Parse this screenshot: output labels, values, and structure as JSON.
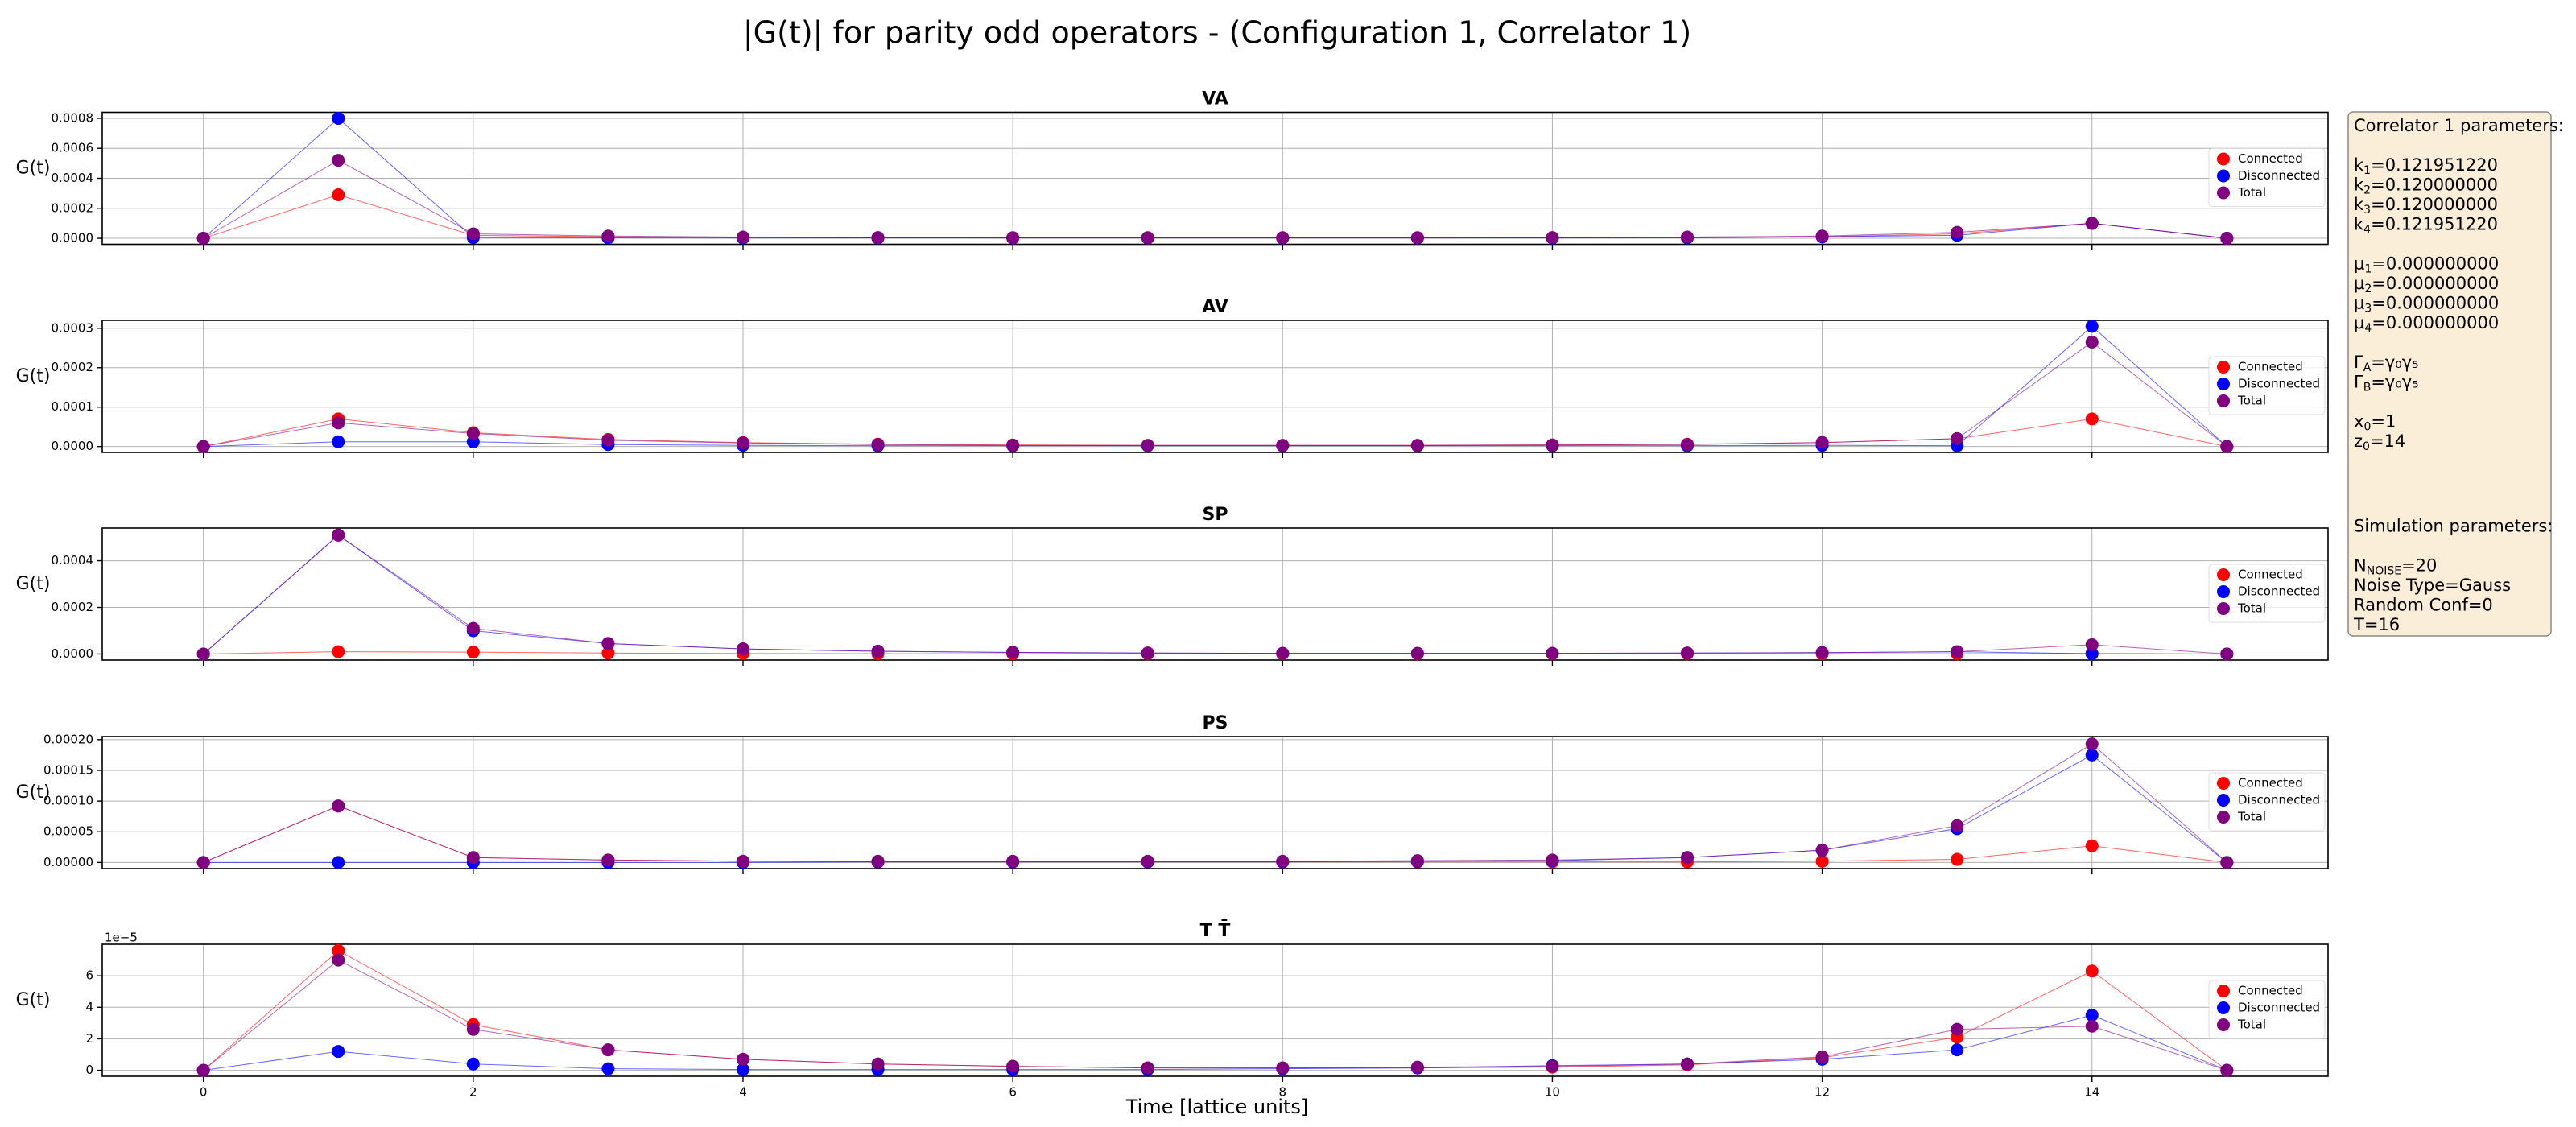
{
  "title": "|G(t)| for parity odd operators - (Configuration 1, Correlator 1)",
  "xlabel": "Time [lattice units]",
  "chart_data": [
    {
      "type": "line",
      "title": "VA",
      "ylabel": "G(t)",
      "grid": true,
      "legend": "right",
      "x": [
        0,
        1,
        2,
        3,
        4,
        5,
        6,
        7,
        8,
        9,
        10,
        11,
        12,
        13,
        14,
        15
      ],
      "xlim": [
        -0.75,
        15.75
      ],
      "xticks": [
        0,
        2,
        4,
        6,
        8,
        10,
        12,
        14
      ],
      "ylim": [
        -4e-05,
        0.00084
      ],
      "yticks": [
        {
          "value": 0,
          "label": "0.0000"
        },
        {
          "value": 0.0002,
          "label": "0.0002"
        },
        {
          "value": 0.0004,
          "label": "0.0004"
        },
        {
          "value": 0.0006,
          "label": "0.0006"
        },
        {
          "value": 0.0008,
          "label": "0.0008"
        }
      ],
      "series": [
        {
          "name": "Connected",
          "color": "red",
          "values": [
            0,
            0.00029,
            2e-05,
            1e-05,
            5e-06,
            3e-06,
            2e-06,
            2e-06,
            2e-06,
            2e-06,
            3e-06,
            5e-06,
            1e-05,
            3e-05,
            0.0001,
            0
          ]
        },
        {
          "name": "Disconnected",
          "color": "blue",
          "values": [
            0,
            0.0008,
            5e-06,
            3e-06,
            2e-06,
            2e-06,
            2e-06,
            2e-06,
            2e-06,
            2e-06,
            2e-06,
            3e-06,
            1e-05,
            2e-05,
            0.0001,
            0
          ]
        },
        {
          "name": "Total",
          "color": "purple",
          "values": [
            0,
            0.00052,
            3e-05,
            1.5e-05,
            8e-06,
            5e-06,
            4e-06,
            4e-06,
            4e-06,
            4e-06,
            5e-06,
            8e-06,
            1.5e-05,
            4e-05,
            0.0001,
            0
          ]
        }
      ]
    },
    {
      "type": "line",
      "title": "AV",
      "ylabel": "G(t)",
      "grid": true,
      "legend": "right",
      "x": [
        0,
        1,
        2,
        3,
        4,
        5,
        6,
        7,
        8,
        9,
        10,
        11,
        12,
        13,
        14,
        15
      ],
      "xlim": [
        -0.75,
        15.75
      ],
      "xticks": [
        0,
        2,
        4,
        6,
        8,
        10,
        12,
        14
      ],
      "ylim": [
        -1.5e-05,
        0.00032
      ],
      "yticks": [
        {
          "value": 0,
          "label": "0.0000"
        },
        {
          "value": 0.0001,
          "label": "0.0001"
        },
        {
          "value": 0.0002,
          "label": "0.0002"
        },
        {
          "value": 0.0003,
          "label": "0.0003"
        }
      ],
      "series": [
        {
          "name": "Connected",
          "color": "red",
          "values": [
            0,
            7e-05,
            3.5e-05,
            1.8e-05,
            1e-05,
            6e-06,
            4e-06,
            3e-06,
            3e-06,
            3e-06,
            4e-06,
            6e-06,
            1e-05,
            2e-05,
            7e-05,
            0
          ]
        },
        {
          "name": "Disconnected",
          "color": "blue",
          "values": [
            0,
            1.2e-05,
            1.2e-05,
            5e-06,
            3e-06,
            2e-06,
            2e-06,
            2e-06,
            2e-06,
            2e-06,
            2e-06,
            2e-06,
            3e-06,
            2e-06,
            0.000305,
            0
          ]
        },
        {
          "name": "Total",
          "color": "purple",
          "values": [
            0,
            6e-05,
            3.3e-05,
            1.6e-05,
            9e-06,
            5e-06,
            3e-06,
            3e-06,
            3e-06,
            3e-06,
            4e-06,
            5e-06,
            1e-05,
            2e-05,
            0.000265,
            0
          ]
        }
      ]
    },
    {
      "type": "line",
      "title": "SP",
      "ylabel": "G(t)",
      "grid": true,
      "legend": "right",
      "x": [
        0,
        1,
        2,
        3,
        4,
        5,
        6,
        7,
        8,
        9,
        10,
        11,
        12,
        13,
        14,
        15
      ],
      "xlim": [
        -0.75,
        15.75
      ],
      "xticks": [
        0,
        2,
        4,
        6,
        8,
        10,
        12,
        14
      ],
      "ylim": [
        -2.6e-05,
        0.00054
      ],
      "yticks": [
        {
          "value": 0,
          "label": "0.0000"
        },
        {
          "value": 0.0002,
          "label": "0.0002"
        },
        {
          "value": 0.0004,
          "label": "0.0004"
        }
      ],
      "series": [
        {
          "name": "Connected",
          "color": "red",
          "values": [
            0,
            1e-05,
            8e-06,
            4e-06,
            2e-06,
            1e-06,
            1e-06,
            1e-06,
            1e-06,
            1e-06,
            1e-06,
            1e-06,
            1e-06,
            1e-06,
            2e-06,
            0
          ]
        },
        {
          "name": "Disconnected",
          "color": "blue",
          "values": [
            0,
            0.00051,
            0.0001,
            4.5e-05,
            2.2e-05,
            1.2e-05,
            7e-06,
            4e-06,
            3e-06,
            3e-06,
            3e-06,
            4e-06,
            6e-06,
            1e-05,
            1e-06,
            0
          ]
        },
        {
          "name": "Total",
          "color": "purple",
          "values": [
            0,
            0.00051,
            0.00011,
            4.5e-05,
            2.2e-05,
            1.2e-05,
            7e-06,
            4e-06,
            3e-06,
            3e-06,
            3e-06,
            4e-06,
            6e-06,
            1e-05,
            4e-05,
            0
          ]
        }
      ]
    },
    {
      "type": "line",
      "title": "PS",
      "ylabel": "G(t)",
      "grid": true,
      "legend": "right",
      "x": [
        0,
        1,
        2,
        3,
        4,
        5,
        6,
        7,
        8,
        9,
        10,
        11,
        12,
        13,
        14,
        15
      ],
      "xlim": [
        -0.75,
        15.75
      ],
      "xticks": [
        0,
        2,
        4,
        6,
        8,
        10,
        12,
        14
      ],
      "ylim": [
        -1e-05,
        0.000205
      ],
      "yticks": [
        {
          "value": 0,
          "label": "0.00000"
        },
        {
          "value": 5e-05,
          "label": "0.00005"
        },
        {
          "value": 0.0001,
          "label": "0.00010"
        },
        {
          "value": 0.00015,
          "label": "0.00015"
        },
        {
          "value": 0.0002,
          "label": "0.00020"
        }
      ],
      "series": [
        {
          "name": "Connected",
          "color": "red",
          "values": [
            0,
            9.2e-05,
            8e-06,
            4e-06,
            2e-06,
            1e-06,
            1e-06,
            1e-06,
            1e-06,
            1e-06,
            1e-06,
            1e-06,
            2e-06,
            5e-06,
            2.7e-05,
            0
          ]
        },
        {
          "name": "Disconnected",
          "color": "blue",
          "values": [
            0,
            0,
            0,
            0,
            0,
            1e-06,
            1e-06,
            1e-06,
            1e-06,
            2e-06,
            3e-06,
            8e-06,
            2e-05,
            5.5e-05,
            0.000175,
            0
          ]
        },
        {
          "name": "Total",
          "color": "purple",
          "values": [
            0,
            9.2e-05,
            8e-06,
            4e-06,
            2e-06,
            2e-06,
            2e-06,
            2e-06,
            2e-06,
            3e-06,
            4e-06,
            8e-06,
            2e-05,
            6e-05,
            0.000193,
            0
          ]
        }
      ]
    },
    {
      "type": "line",
      "title": "T T̄",
      "ylabel": "G(t)",
      "grid": true,
      "legend": "right",
      "offset_text": "1e−5",
      "x": [
        0,
        1,
        2,
        3,
        4,
        5,
        6,
        7,
        8,
        9,
        10,
        11,
        12,
        13,
        14,
        15
      ],
      "xlim": [
        -0.75,
        15.75
      ],
      "xticks": [
        0,
        2,
        4,
        6,
        8,
        10,
        12,
        14
      ],
      "ylim": [
        -0.38,
        8.0
      ],
      "yticks": [
        0,
        2,
        4,
        6
      ],
      "series": [
        {
          "name": "Connected",
          "color": "red",
          "values": [
            0,
            7.6,
            2.9,
            1.3,
            0.7,
            0.4,
            0.25,
            0.15,
            0.15,
            0.15,
            0.2,
            0.35,
            0.8,
            2.1,
            6.3,
            0
          ]
        },
        {
          "name": "Disconnected",
          "color": "blue",
          "values": [
            0,
            1.2,
            0.4,
            0.1,
            0.05,
            0.05,
            0.05,
            0.05,
            0.1,
            0.15,
            0.3,
            0.4,
            0.7,
            1.3,
            3.5,
            0
          ]
        },
        {
          "name": "Total",
          "color": "purple",
          "values": [
            0,
            7.0,
            2.6,
            1.3,
            0.7,
            0.4,
            0.25,
            0.15,
            0.15,
            0.2,
            0.25,
            0.4,
            0.85,
            2.6,
            2.8,
            0
          ]
        }
      ]
    }
  ],
  "info_box": [
    {
      "heading": "Correlator 1 parameters:",
      "groups": [
        [
          {
            "text": "k",
            "sub": "1",
            "rest": "=0.121951220"
          },
          {
            "text": "k",
            "sub": "2",
            "rest": "=0.120000000"
          },
          {
            "text": "k",
            "sub": "3",
            "rest": "=0.120000000"
          },
          {
            "text": "k",
            "sub": "4",
            "rest": "=0.121951220"
          }
        ],
        [
          {
            "text": "μ",
            "sub": "1",
            "rest": "=0.000000000"
          },
          {
            "text": "μ",
            "sub": "2",
            "rest": "=0.000000000"
          },
          {
            "text": "μ",
            "sub": "3",
            "rest": "=0.000000000"
          },
          {
            "text": "μ",
            "sub": "4",
            "rest": "=0.000000000"
          }
        ],
        [
          {
            "text": "Γ",
            "sub": "A",
            "rest": "=γ₀γ₅"
          },
          {
            "text": "Γ",
            "sub": "B",
            "rest": "=γ₀γ₅"
          }
        ],
        [
          {
            "text": "x",
            "sub": "0",
            "rest": "=1"
          },
          {
            "text": "z",
            "sub": "0",
            "rest": "=14"
          }
        ]
      ]
    },
    {
      "heading": "Simulation parameters:",
      "groups": [
        [
          {
            "text": "N",
            "sub": "NOISE",
            "rest": "=20"
          },
          {
            "text": "Noise Type=Gauss"
          },
          {
            "text": "Random Conf=0"
          },
          {
            "text": "T=16"
          }
        ]
      ]
    }
  ]
}
